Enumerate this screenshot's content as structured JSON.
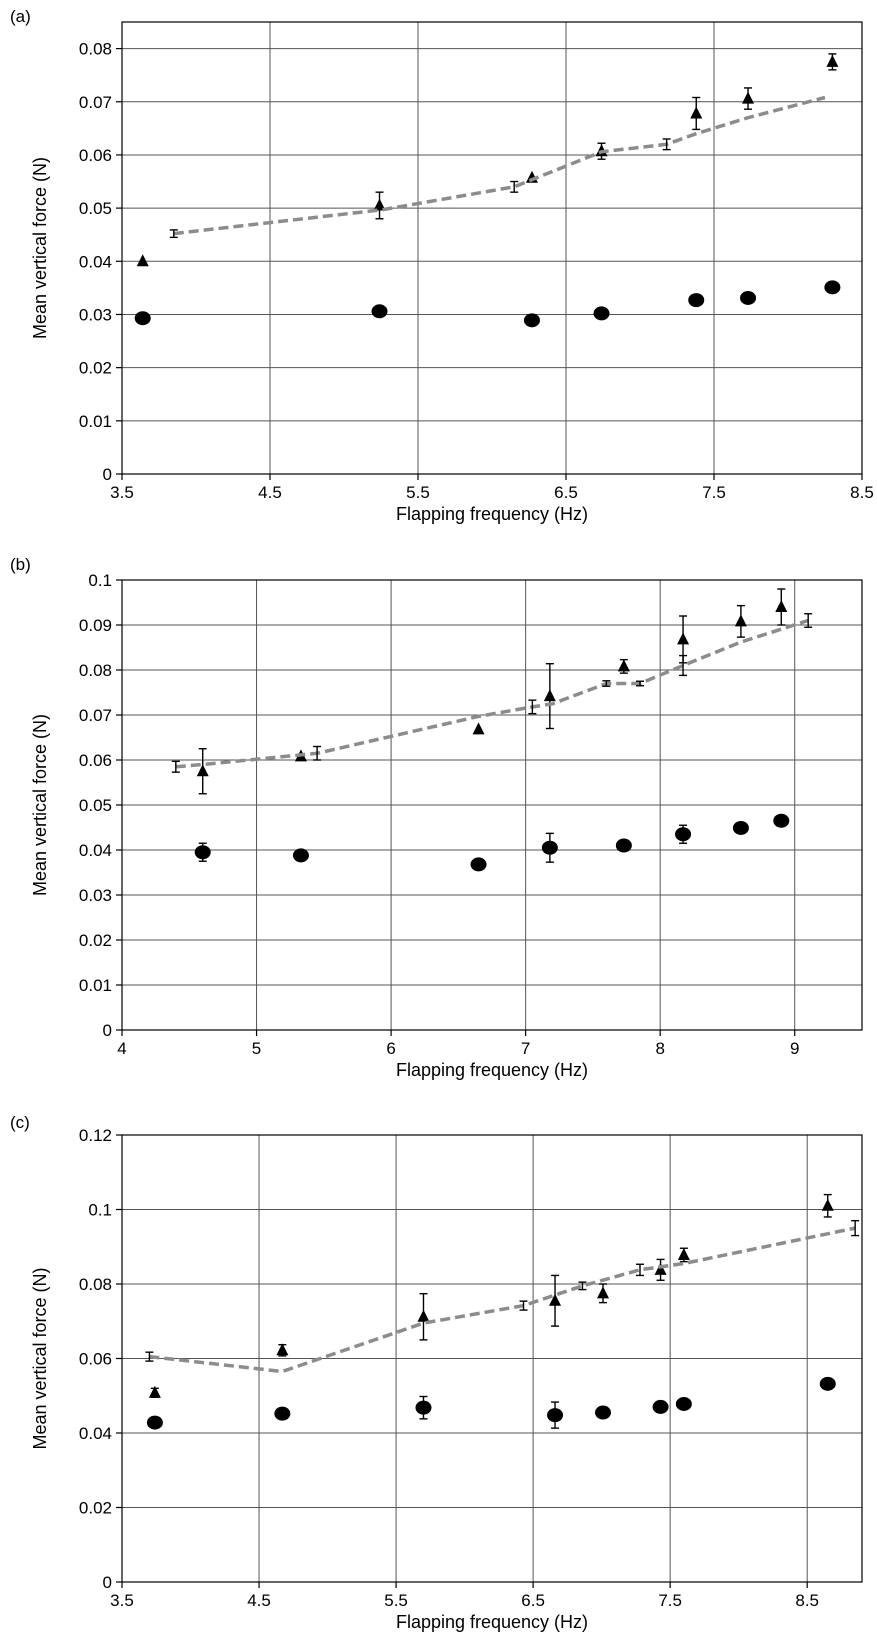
{
  "chart_data": [
    {
      "type": "scatter",
      "panel_label": "(a)",
      "xlabel": "Flapping frequency (Hz)",
      "ylabel": "Mean vertical force (N)",
      "xlim": [
        3.5,
        8.5
      ],
      "ylim": [
        0,
        0.085
      ],
      "xticks": [
        3.5,
        4.5,
        5.5,
        6.5,
        7.5,
        8.5
      ],
      "xtick_labels": [
        "3.5",
        "4.5",
        "5.5",
        "6.5",
        "7.5",
        "8.5"
      ],
      "yticks": [
        0,
        0.01,
        0.02,
        0.03,
        0.04,
        0.05,
        0.06,
        0.07,
        0.08
      ],
      "ytick_labels": [
        "0",
        "0.01",
        "0.02",
        "0.03",
        "0.04",
        "0.05",
        "0.06",
        "0.07",
        "0.08"
      ],
      "grid": true,
      "series": [
        {
          "marker": "triangle",
          "points": [
            {
              "x": 3.64,
              "y": 0.04
            },
            {
              "x": 5.24,
              "y": 0.0505,
              "err": 0.0025
            },
            {
              "x": 6.27,
              "y": 0.0557
            },
            {
              "x": 6.74,
              "y": 0.0607,
              "err": 0.0015
            },
            {
              "x": 7.38,
              "y": 0.0678,
              "err": 0.003
            },
            {
              "x": 7.73,
              "y": 0.0706,
              "err": 0.002
            },
            {
              "x": 8.3,
              "y": 0.0775,
              "err": 0.0015
            }
          ]
        },
        {
          "marker": "circle",
          "points": [
            {
              "x": 3.64,
              "y": 0.0293
            },
            {
              "x": 5.24,
              "y": 0.0306
            },
            {
              "x": 6.27,
              "y": 0.0289
            },
            {
              "x": 6.74,
              "y": 0.0302
            },
            {
              "x": 7.38,
              "y": 0.0327
            },
            {
              "x": 7.73,
              "y": 0.0331
            },
            {
              "x": 8.3,
              "y": 0.0351
            }
          ]
        },
        {
          "marker": "dashed-line",
          "points": [
            {
              "x": 3.85,
              "y": 0.0452,
              "err": 0.0007
            },
            {
              "x": 5.26,
              "y": 0.0497
            },
            {
              "x": 6.15,
              "y": 0.054,
              "err": 0.001
            },
            {
              "x": 6.74,
              "y": 0.0606
            },
            {
              "x": 7.18,
              "y": 0.062,
              "err": 0.001
            },
            {
              "x": 7.38,
              "y": 0.064
            },
            {
              "x": 7.73,
              "y": 0.067
            },
            {
              "x": 8.25,
              "y": 0.0708
            }
          ]
        }
      ]
    },
    {
      "type": "scatter",
      "panel_label": "(b)",
      "xlabel": "Flapping frequency (Hz)",
      "ylabel": "Mean vertical force (N)",
      "xlim": [
        4,
        9.5
      ],
      "ylim": [
        0,
        0.1
      ],
      "xticks": [
        4,
        5,
        6,
        7,
        8,
        9
      ],
      "xtick_labels": [
        "4",
        "5",
        "6",
        "7",
        "8",
        "9"
      ],
      "yticks": [
        0,
        0.01,
        0.02,
        0.03,
        0.04,
        0.05,
        0.06,
        0.07,
        0.08,
        0.09,
        0.1
      ],
      "ytick_labels": [
        "0",
        "0.01",
        "0.02",
        "0.03",
        "0.04",
        "0.05",
        "0.06",
        "0.07",
        "0.08",
        "0.09",
        "0.1"
      ],
      "grid": true,
      "series": [
        {
          "marker": "triangle",
          "points": [
            {
              "x": 4.6,
              "y": 0.0575,
              "err": 0.005
            },
            {
              "x": 5.33,
              "y": 0.0608
            },
            {
              "x": 6.65,
              "y": 0.0668
            },
            {
              "x": 7.18,
              "y": 0.0742,
              "err": 0.0072
            },
            {
              "x": 7.73,
              "y": 0.0808,
              "err": 0.0015
            },
            {
              "x": 8.17,
              "y": 0.0868,
              "err": 0.0052
            },
            {
              "x": 8.6,
              "y": 0.0908,
              "err": 0.0035
            },
            {
              "x": 8.9,
              "y": 0.094,
              "err": 0.004
            }
          ]
        },
        {
          "marker": "circle",
          "points": [
            {
              "x": 4.6,
              "y": 0.0395,
              "err": 0.002
            },
            {
              "x": 5.33,
              "y": 0.0388
            },
            {
              "x": 6.65,
              "y": 0.0368
            },
            {
              "x": 7.18,
              "y": 0.0405,
              "err": 0.0032
            },
            {
              "x": 7.73,
              "y": 0.041
            },
            {
              "x": 8.17,
              "y": 0.0435,
              "err": 0.002
            },
            {
              "x": 8.6,
              "y": 0.0449
            },
            {
              "x": 8.9,
              "y": 0.0465
            }
          ]
        },
        {
          "marker": "dashed-line",
          "points": [
            {
              "x": 4.4,
              "y": 0.0585,
              "err": 0.0012
            },
            {
              "x": 4.6,
              "y": 0.059
            },
            {
              "x": 5.45,
              "y": 0.0615,
              "err": 0.0015
            },
            {
              "x": 6.65,
              "y": 0.0697
            },
            {
              "x": 7.05,
              "y": 0.0718,
              "err": 0.0015
            },
            {
              "x": 7.2,
              "y": 0.0725
            },
            {
              "x": 7.6,
              "y": 0.077,
              "err": 0.0006
            },
            {
              "x": 7.85,
              "y": 0.077,
              "err": 0.0005
            },
            {
              "x": 8.17,
              "y": 0.081,
              "err": 0.0022
            },
            {
              "x": 8.6,
              "y": 0.0862
            },
            {
              "x": 9.1,
              "y": 0.091,
              "err": 0.0015
            }
          ]
        }
      ]
    },
    {
      "type": "scatter",
      "panel_label": "(c)",
      "xlabel": "Flapping frequency (Hz)",
      "ylabel": "Mean vertical force (N)",
      "xlim": [
        3.5,
        8.9
      ],
      "ylim": [
        0,
        0.12
      ],
      "xticks": [
        3.5,
        4.5,
        5.5,
        6.5,
        7.5,
        8.5
      ],
      "xtick_labels": [
        "3.5",
        "4.5",
        "5.5",
        "6.5",
        "7.5",
        "8.5"
      ],
      "yticks": [
        0,
        0.02,
        0.04,
        0.06,
        0.08,
        0.1,
        0.12
      ],
      "ytick_labels": [
        "0",
        "0.02",
        "0.04",
        "0.06",
        "0.08",
        "0.1",
        "0.12"
      ],
      "grid": true,
      "series": [
        {
          "marker": "triangle",
          "points": [
            {
              "x": 3.74,
              "y": 0.0508,
              "err": 0.0012
            },
            {
              "x": 4.67,
              "y": 0.0622,
              "err": 0.0015
            },
            {
              "x": 5.7,
              "y": 0.0712,
              "err": 0.0062
            },
            {
              "x": 6.66,
              "y": 0.0755,
              "err": 0.0068
            },
            {
              "x": 7.01,
              "y": 0.0775,
              "err": 0.0025
            },
            {
              "x": 7.43,
              "y": 0.0838,
              "err": 0.0028
            },
            {
              "x": 7.6,
              "y": 0.0878,
              "err": 0.0018
            },
            {
              "x": 8.65,
              "y": 0.101,
              "err": 0.003
            }
          ]
        },
        {
          "marker": "circle",
          "points": [
            {
              "x": 3.74,
              "y": 0.0428
            },
            {
              "x": 4.67,
              "y": 0.0452
            },
            {
              "x": 5.7,
              "y": 0.0468,
              "err": 0.003
            },
            {
              "x": 6.66,
              "y": 0.0448,
              "err": 0.0035
            },
            {
              "x": 7.01,
              "y": 0.0455
            },
            {
              "x": 7.43,
              "y": 0.047
            },
            {
              "x": 7.6,
              "y": 0.0478
            },
            {
              "x": 8.65,
              "y": 0.0532
            }
          ]
        },
        {
          "marker": "dashed-line",
          "points": [
            {
              "x": 3.7,
              "y": 0.0605,
              "err": 0.0012
            },
            {
              "x": 4.67,
              "y": 0.0565
            },
            {
              "x": 5.7,
              "y": 0.0695
            },
            {
              "x": 6.43,
              "y": 0.0742,
              "err": 0.0012
            },
            {
              "x": 6.86,
              "y": 0.0795,
              "err": 0.001
            },
            {
              "x": 7.28,
              "y": 0.0838,
              "err": 0.0015
            },
            {
              "x": 7.6,
              "y": 0.0855
            },
            {
              "x": 8.85,
              "y": 0.095,
              "err": 0.002
            }
          ]
        }
      ]
    }
  ]
}
